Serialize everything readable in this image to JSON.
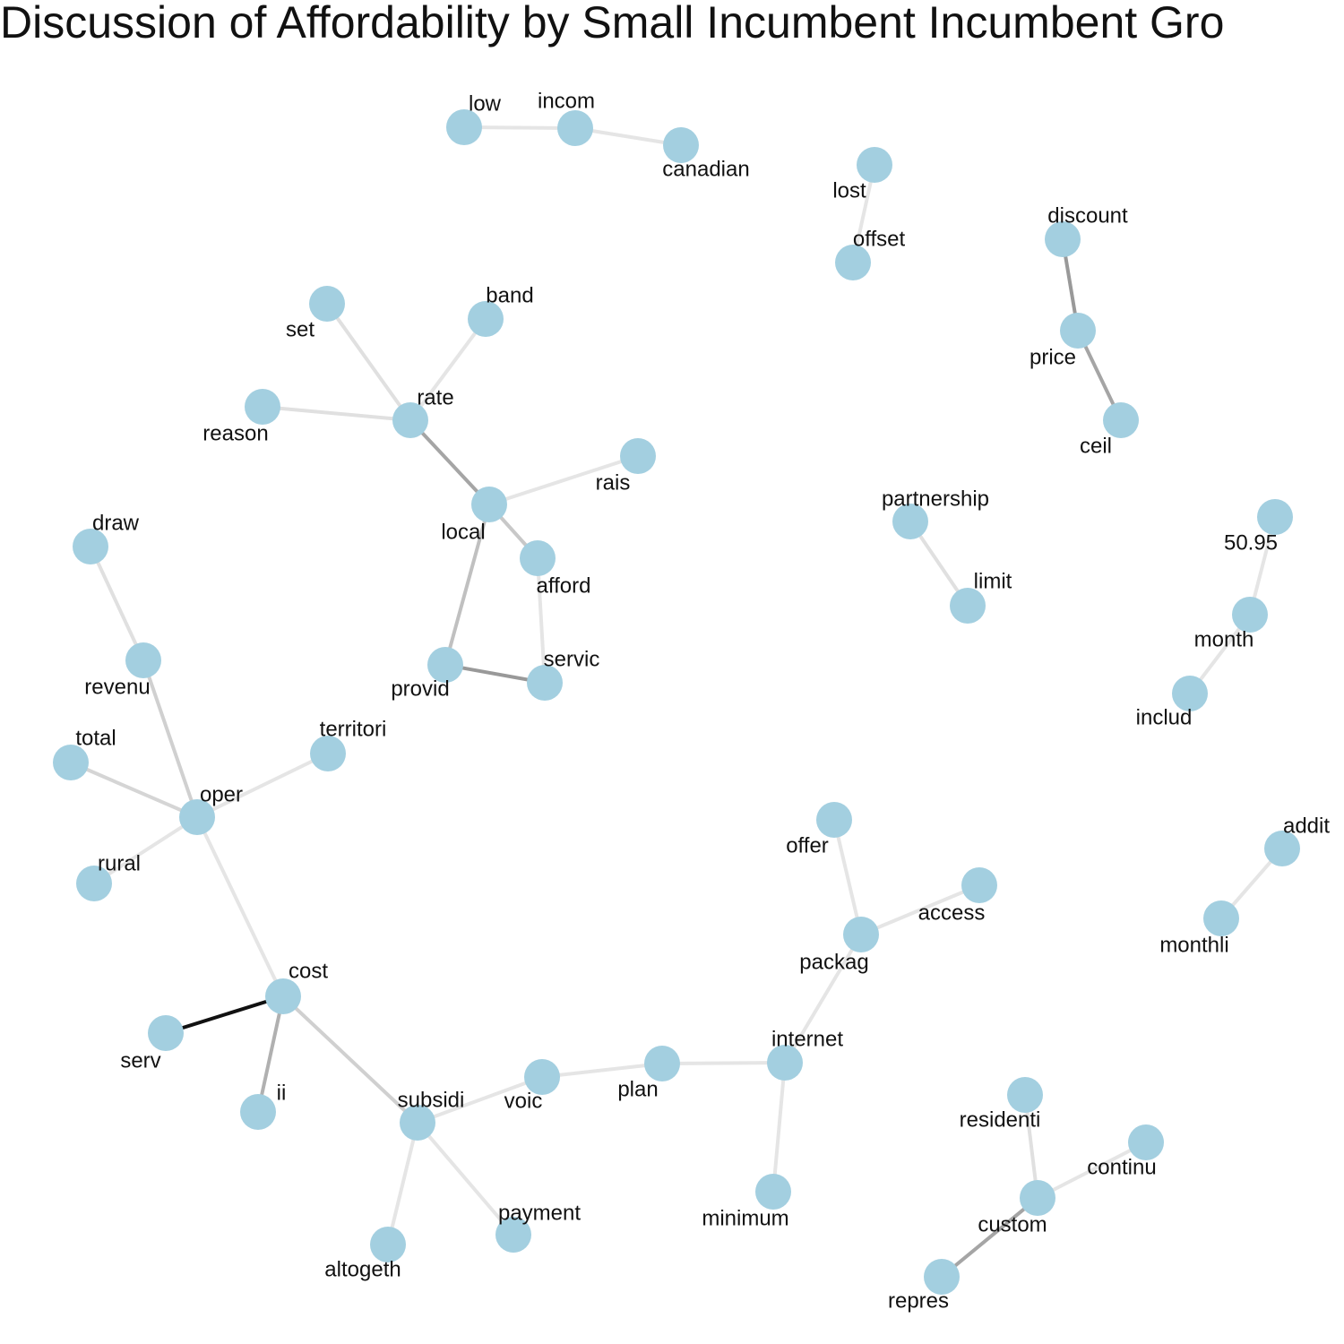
{
  "title": "Discussion of Affordability by Small Incumbent Incumbent Gro",
  "node_color": "#a3cfe0",
  "nodes": [
    "low",
    "incom",
    "canadian",
    "lost",
    "offset",
    "discount",
    "price",
    "ceil",
    "set",
    "band",
    "rate",
    "reason",
    "rais",
    "local",
    "afford",
    "partnership",
    "limit",
    "50.95",
    "month",
    "includ",
    "draw",
    "revenu",
    "provid",
    "servic",
    "territori",
    "total",
    "oper",
    "rural",
    "offer",
    "access",
    "packag",
    "addit",
    "monthli",
    "cost",
    "serv",
    "ii",
    "subsidi",
    "voic",
    "plan",
    "internet",
    "residenti",
    "continu",
    "custom",
    "minimum",
    "payment",
    "altogeth",
    "repres"
  ],
  "edges": [
    {
      "source": "low",
      "target": "incom",
      "color": "#e5e5e5"
    },
    {
      "source": "incom",
      "target": "canadian",
      "color": "#e5e5e5"
    },
    {
      "source": "lost",
      "target": "offset",
      "color": "#e5e5e5"
    },
    {
      "source": "discount",
      "target": "price",
      "color": "#999999"
    },
    {
      "source": "price",
      "target": "ceil",
      "color": "#a5a5a5"
    },
    {
      "source": "set",
      "target": "rate",
      "color": "#e0e0e0"
    },
    {
      "source": "band",
      "target": "rate",
      "color": "#e5e5e5"
    },
    {
      "source": "reason",
      "target": "rate",
      "color": "#e0e0e0"
    },
    {
      "source": "rate",
      "target": "local",
      "color": "#a5a5a5"
    },
    {
      "source": "local",
      "target": "rais",
      "color": "#e5e5e5"
    },
    {
      "source": "local",
      "target": "afford",
      "color": "#c8c8c8"
    },
    {
      "source": "local",
      "target": "provid",
      "color": "#c0c0c0"
    },
    {
      "source": "afford",
      "target": "servic",
      "color": "#e5e5e5"
    },
    {
      "source": "provid",
      "target": "servic",
      "color": "#999999"
    },
    {
      "source": "partnership",
      "target": "limit",
      "color": "#e0e0e0"
    },
    {
      "source": "50.95",
      "target": "month",
      "color": "#e5e5e5"
    },
    {
      "source": "month",
      "target": "includ",
      "color": "#e5e5e5"
    },
    {
      "source": "draw",
      "target": "revenu",
      "color": "#e0e0e0"
    },
    {
      "source": "revenu",
      "target": "oper",
      "color": "#d0d0d0"
    },
    {
      "source": "total",
      "target": "oper",
      "color": "#d5d5d5"
    },
    {
      "source": "territori",
      "target": "oper",
      "color": "#e5e5e5"
    },
    {
      "source": "rural",
      "target": "oper",
      "color": "#e5e5e5"
    },
    {
      "source": "oper",
      "target": "cost",
      "color": "#e5e5e5"
    },
    {
      "source": "cost",
      "target": "serv",
      "color": "#111111"
    },
    {
      "source": "cost",
      "target": "ii",
      "color": "#b0b0b0"
    },
    {
      "source": "cost",
      "target": "subsidi",
      "color": "#d0d0d0"
    },
    {
      "source": "subsidi",
      "target": "voic",
      "color": "#e5e5e5"
    },
    {
      "source": "subsidi",
      "target": "payment",
      "color": "#e5e5e5"
    },
    {
      "source": "subsidi",
      "target": "altogeth",
      "color": "#e5e5e5"
    },
    {
      "source": "voic",
      "target": "plan",
      "color": "#e5e5e5"
    },
    {
      "source": "plan",
      "target": "internet",
      "color": "#e5e5e5"
    },
    {
      "source": "internet",
      "target": "packag",
      "color": "#e5e5e5"
    },
    {
      "source": "internet",
      "target": "minimum",
      "color": "#e5e5e5"
    },
    {
      "source": "packag",
      "target": "offer",
      "color": "#e5e5e5"
    },
    {
      "source": "packag",
      "target": "access",
      "color": "#e5e5e5"
    },
    {
      "source": "addit",
      "target": "monthli",
      "color": "#e5e5e5"
    },
    {
      "source": "residenti",
      "target": "custom",
      "color": "#e0e0e0"
    },
    {
      "source": "continu",
      "target": "custom",
      "color": "#e5e5e5"
    },
    {
      "source": "custom",
      "target": "repres",
      "color": "#a5a5a5"
    }
  ]
}
